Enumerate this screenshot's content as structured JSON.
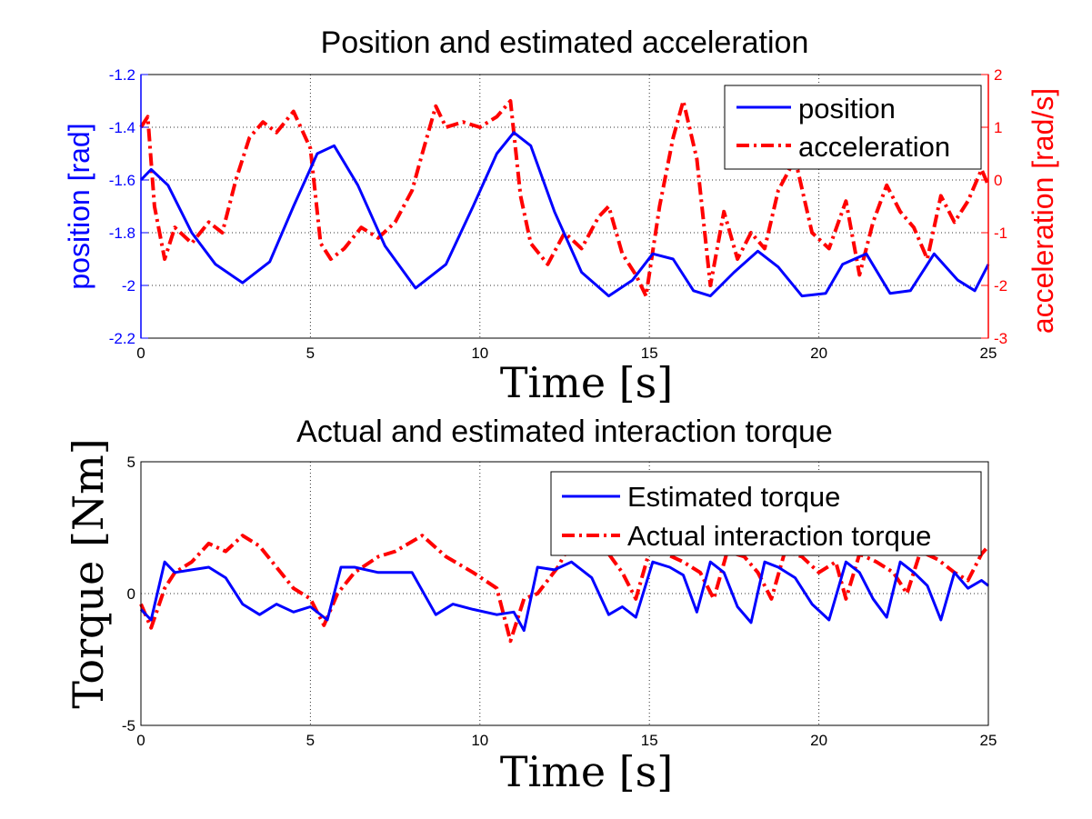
{
  "chart_data": [
    {
      "type": "line",
      "title": "Position and estimated acceleration",
      "xlabel": "Time [s]",
      "ylabel_left": "position [rad]",
      "ylabel_right": "acceleration [rad/s]",
      "xlim": [
        0,
        25
      ],
      "ylim_left": [
        -2.2,
        -1.2
      ],
      "ylim_right": [
        -3,
        2
      ],
      "x_ticks": [
        "0",
        "5",
        "10",
        "15",
        "20",
        "25"
      ],
      "y_ticks_left": [
        "-1.2",
        "-1.4",
        "-1.6",
        "-1.8",
        "-2",
        "-2.2"
      ],
      "y_ticks_right": [
        "2",
        "1",
        "0",
        "-1",
        "-2",
        "-3"
      ],
      "grid": true,
      "legend_position": "top-right",
      "axis_colors": {
        "left": "#0000ff",
        "right": "#ff0000"
      },
      "series": [
        {
          "name": "position",
          "axis": "left",
          "color": "#0000ff",
          "style": "solid",
          "x": [
            0,
            0.3,
            0.8,
            1.5,
            2.2,
            3.0,
            3.8,
            4.5,
            5.2,
            5.7,
            6.4,
            7.2,
            8.1,
            9.0,
            9.8,
            10.5,
            11.0,
            11.5,
            12.2,
            13.0,
            13.8,
            14.5,
            15.1,
            15.7,
            16.3,
            16.8,
            17.5,
            18.2,
            18.8,
            19.5,
            20.2,
            20.7,
            21.4,
            22.1,
            22.7,
            23.4,
            24.1,
            24.6,
            25.0
          ],
          "y": [
            -1.6,
            -1.56,
            -1.62,
            -1.8,
            -1.92,
            -1.99,
            -1.91,
            -1.7,
            -1.5,
            -1.47,
            -1.62,
            -1.85,
            -2.01,
            -1.92,
            -1.7,
            -1.5,
            -1.42,
            -1.47,
            -1.72,
            -1.95,
            -2.04,
            -1.98,
            -1.88,
            -1.9,
            -2.02,
            -2.04,
            -1.95,
            -1.87,
            -1.93,
            -2.04,
            -2.03,
            -1.92,
            -1.88,
            -2.03,
            -2.02,
            -1.88,
            -1.98,
            -2.02,
            -1.92
          ]
        },
        {
          "name": "acceleration",
          "axis": "right",
          "color": "#ff0000",
          "style": "dashdot",
          "x": [
            0,
            0.2,
            0.4,
            0.7,
            1.0,
            1.5,
            2.0,
            2.4,
            2.8,
            3.2,
            3.6,
            4.0,
            4.5,
            5.0,
            5.3,
            5.6,
            6.0,
            6.5,
            7.0,
            7.5,
            8.0,
            8.3,
            8.7,
            9.0,
            9.5,
            10.0,
            10.5,
            10.9,
            11.2,
            11.5,
            12.0,
            12.5,
            13.0,
            13.5,
            13.8,
            14.2,
            14.6,
            14.9,
            15.3,
            15.7,
            16.0,
            16.4,
            16.8,
            17.2,
            17.6,
            18.0,
            18.4,
            18.8,
            19.3,
            19.8,
            20.3,
            20.8,
            21.2,
            21.6,
            22.0,
            22.4,
            22.8,
            23.2,
            23.6,
            24.0,
            24.4,
            24.8,
            25.0
          ],
          "y": [
            1.0,
            1.2,
            -0.5,
            -1.5,
            -0.9,
            -1.2,
            -0.8,
            -1.0,
            0.0,
            0.8,
            1.1,
            0.9,
            1.3,
            0.6,
            -1.2,
            -1.5,
            -1.3,
            -0.9,
            -1.1,
            -0.8,
            -0.2,
            0.5,
            1.4,
            1.0,
            1.1,
            1.0,
            1.2,
            1.5,
            -0.3,
            -1.2,
            -1.6,
            -1.0,
            -1.3,
            -0.7,
            -0.5,
            -1.4,
            -1.8,
            -2.2,
            -0.5,
            0.8,
            1.5,
            0.4,
            -2.0,
            -0.6,
            -1.5,
            -1.0,
            -1.3,
            -0.2,
            0.4,
            -1.0,
            -1.3,
            -0.4,
            -1.8,
            -0.8,
            -0.1,
            -0.6,
            -0.9,
            -1.5,
            -0.3,
            -0.8,
            -0.4,
            0.2,
            -0.1
          ]
        }
      ]
    },
    {
      "type": "line",
      "title": "Actual and estimated interaction torque",
      "xlabel": "Time [s]",
      "ylabel": "Torque [Nm]",
      "xlim": [
        0,
        25
      ],
      "ylim": [
        -5,
        5
      ],
      "x_ticks": [
        "0",
        "5",
        "10",
        "15",
        "20",
        "25"
      ],
      "y_ticks": [
        "5",
        "0",
        "-5"
      ],
      "grid": true,
      "legend_position": "top-right",
      "series": [
        {
          "name": "Estimated torque",
          "color": "#0000ff",
          "style": "solid",
          "x": [
            0,
            0.3,
            0.7,
            1.0,
            1.5,
            2.0,
            2.5,
            3.0,
            3.5,
            4.0,
            4.5,
            5.0,
            5.5,
            5.9,
            6.3,
            7.0,
            8.0,
            8.7,
            9.2,
            9.8,
            10.5,
            11.0,
            11.3,
            11.7,
            12.2,
            12.7,
            13.3,
            13.8,
            14.2,
            14.6,
            15.1,
            15.6,
            16.0,
            16.4,
            16.8,
            17.2,
            17.6,
            18.0,
            18.4,
            18.8,
            19.3,
            19.8,
            20.3,
            20.8,
            21.2,
            21.6,
            22.0,
            22.4,
            22.8,
            23.2,
            23.6,
            24.0,
            24.4,
            24.8,
            25.0
          ],
          "y": [
            -0.6,
            -1.0,
            1.2,
            0.8,
            0.9,
            1.0,
            0.6,
            -0.4,
            -0.8,
            -0.4,
            -0.7,
            -0.5,
            -1.0,
            1.0,
            1.0,
            0.8,
            0.8,
            -0.8,
            -0.4,
            -0.6,
            -0.8,
            -0.7,
            -1.4,
            1.0,
            0.9,
            1.2,
            0.6,
            -0.8,
            -0.5,
            -0.9,
            1.2,
            1.0,
            0.7,
            -0.7,
            1.2,
            0.8,
            -0.5,
            -1.1,
            1.2,
            1.0,
            0.6,
            -0.4,
            -1.0,
            1.2,
            0.8,
            -0.2,
            -0.9,
            1.2,
            0.8,
            0.3,
            -1.0,
            0.8,
            0.2,
            0.5,
            0.3
          ]
        },
        {
          "name": "Actual interaction torque",
          "color": "#ff0000",
          "style": "dashdot",
          "x": [
            0,
            0.3,
            0.7,
            1.0,
            1.5,
            2.0,
            2.5,
            3.0,
            3.5,
            4.0,
            4.5,
            5.0,
            5.4,
            5.8,
            6.3,
            7.0,
            7.5,
            8.3,
            9.0,
            9.8,
            10.5,
            10.9,
            11.3,
            11.7,
            12.3,
            12.8,
            13.3,
            13.8,
            14.2,
            14.6,
            15.0,
            15.5,
            16.0,
            16.5,
            16.9,
            17.3,
            17.8,
            18.2,
            18.6,
            19.0,
            19.5,
            20.0,
            20.5,
            20.8,
            21.2,
            21.7,
            22.2,
            22.6,
            23.0,
            23.5,
            24.0,
            24.4,
            24.8,
            25.0
          ],
          "y": [
            -0.4,
            -1.3,
            0.2,
            0.8,
            1.2,
            1.9,
            1.6,
            2.2,
            1.8,
            1.0,
            0.2,
            -0.2,
            -1.2,
            0.0,
            0.8,
            1.4,
            1.6,
            2.2,
            1.4,
            0.8,
            0.2,
            -1.8,
            -0.2,
            0.0,
            1.0,
            2.2,
            2.5,
            1.5,
            0.8,
            -0.2,
            1.6,
            1.5,
            1.2,
            0.8,
            -0.2,
            1.6,
            1.4,
            0.8,
            -0.2,
            1.6,
            1.4,
            0.8,
            1.2,
            -0.2,
            1.5,
            1.2,
            0.8,
            0.0,
            1.6,
            1.3,
            0.8,
            0.5,
            1.5,
            1.8
          ]
        }
      ]
    }
  ]
}
